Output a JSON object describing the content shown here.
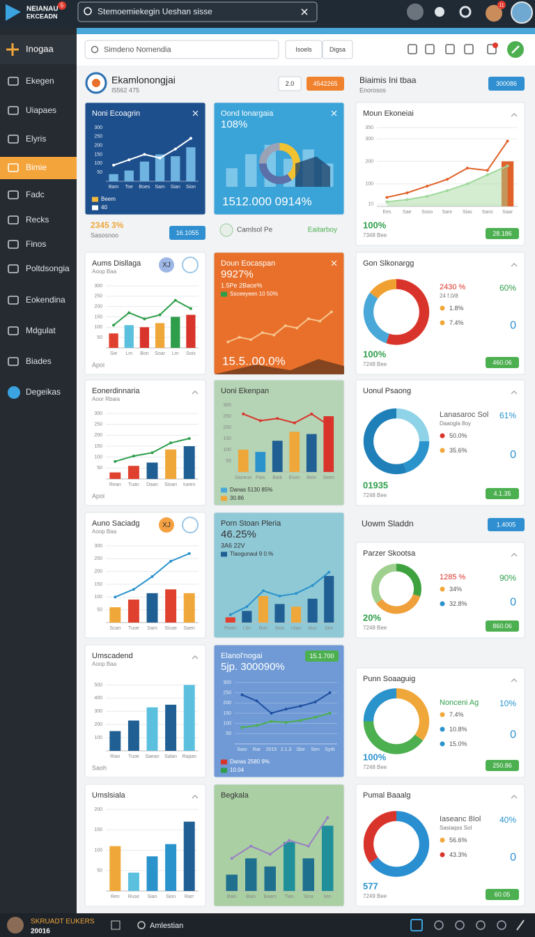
{
  "topbar": {
    "logo_title": "NEIANAU",
    "logo_sub": "EKCEADN",
    "logo_badge": "5",
    "search": "Stemoemiekegin Ueshan sisse",
    "avatar_badge": "11"
  },
  "sidebar": {
    "header": "Inogaa",
    "items": [
      "Ekegen",
      "Uiapaes",
      "Elyris",
      "Bimie",
      "Fadc",
      "Recks",
      "Finos",
      "Poltdsongia",
      "Eokendina",
      "Mdgulat",
      "Biades",
      "Degeikas"
    ],
    "active": 3
  },
  "toolbar": {
    "search": "Simdeno Nomendia",
    "buttons": [
      "Isoels",
      "Digsa"
    ]
  },
  "header": {
    "title": "Ekamlonongjai",
    "subtitle": "I5562 475",
    "buttons": [
      "2.0",
      "4542265"
    ]
  },
  "side_header": {
    "title": "Biaimis Ini tbaa",
    "subtitle": "Enorosos",
    "button": "300086"
  },
  "kpis": [
    {
      "value": "2345 3%",
      "label": "Sasosnoo",
      "button": "16.1055"
    },
    {
      "label": "Camlsol Pe",
      "value": "Eaitarboy"
    }
  ],
  "section": {
    "title": "Uowm Sladdn",
    "button": "1.4005"
  },
  "panels": [
    {
      "kind": "combo",
      "background": "#1d4f8c",
      "title": "Noni Ecoagrin",
      "legend": [
        {
          "text": "Beem",
          "color": "#f5b93a"
        },
        {
          "text": "40",
          "color": "#ffffff"
        }
      ],
      "legend_position": "bottom",
      "chart": {
        "categories": [
          "Bam",
          "Toe",
          "Boes",
          "Sam",
          "Sian",
          "Sion"
        ],
        "ylim": [
          0,
          300
        ],
        "yticks": [
          50,
          100,
          150,
          200,
          250,
          300
        ],
        "grid": false,
        "bars": [
          40,
          60,
          110,
          150,
          140,
          190
        ],
        "bar_colors": [
          "#6fb3e0",
          "#6fb3e0",
          "#6fb3e0",
          "#6fb3e0",
          "#6fb3e0",
          "#6fb3e0"
        ],
        "lines": [
          {
            "color": "#ffffff",
            "values": [
              90,
              120,
              150,
              130,
              180,
              240
            ]
          }
        ]
      }
    },
    {
      "kind": "combo",
      "background": "#3aa3d8",
      "title": "Oond lonargaia",
      "headline": "108%",
      "big": "1512.000 0914%",
      "chart": {
        "ylim": [
          0,
          100
        ],
        "bars": [
          40,
          70,
          90,
          60,
          80,
          50
        ],
        "bar_colors": [
          "#7cc6ea",
          "#7cc6ea",
          "#7cc6ea",
          "#7cc6ea",
          "#7cc6ea",
          "#7cc6ea"
        ],
        "segments": [
          40,
          35,
          25
        ],
        "colors": [
          "#f2c230",
          "#5b6fa8",
          "#9aa3b5"
        ]
      }
    },
    {
      "kind": "combo",
      "background": "#ffffff",
      "title": "Moun Ekoneiai",
      "kpi": "100%",
      "kpi_color": "#2e9e4a",
      "kpi_sub": "7348 Bee",
      "button": "28.186",
      "chart": {
        "categories": [
          "Ees",
          "Sae",
          "Soso",
          "Sanr",
          "Sias",
          "Sans",
          "Saar"
        ],
        "ylim": [
          0,
          350
        ],
        "yticks": [
          10,
          100,
          200,
          300,
          350
        ],
        "grid": true,
        "bars": [
          null,
          null,
          null,
          null,
          null,
          null,
          200
        ],
        "bar_colors": [
          "#e0622a",
          "#e0622a",
          "#e0622a",
          "#e0622a",
          "#e0622a",
          "#e0622a",
          "#e0622a"
        ],
        "lines": [
          {
            "color": "#9fd89a",
            "area": true,
            "values": [
              20,
              30,
              45,
              70,
              100,
              140,
              180
            ]
          },
          {
            "color": "#e0622a",
            "values": [
              40,
              60,
              90,
              120,
              170,
              160,
              290
            ]
          }
        ]
      }
    },
    {
      "kind": "combo",
      "background": "#ffffff",
      "title": "Aums Disllaga",
      "subtitle": "Aoop Baa",
      "badge": "XJ",
      "badge_color": "#9fb7e6",
      "footer": "Apoi",
      "chart": {
        "categories": [
          "Sie",
          "Lm",
          "Bon",
          "Soar",
          "Lm",
          "Sois"
        ],
        "ylim": [
          0,
          300
        ],
        "yticks": [
          50,
          100,
          150,
          200,
          250,
          300
        ],
        "grid": true,
        "bars": [
          70,
          110,
          100,
          120,
          150,
          160
        ],
        "bar_colors": [
          "#e0412f",
          "#5bc0de",
          "#d9342b",
          "#f0a73a",
          "#2e9e4a",
          "#d9342b"
        ],
        "lines": [
          {
            "color": "#2e9e4a",
            "values": [
              110,
              170,
              140,
              160,
              230,
              190
            ]
          }
        ]
      }
    },
    {
      "kind": "combo",
      "background": "#e8702a",
      "title": "Doun Eocaspan",
      "headline": "9927%",
      "headline_sub": "1.5Pe 2Bace%",
      "legend": [
        {
          "text": "Ssceeyeen 10 50%",
          "color": "#2e9e4a"
        }
      ],
      "legend_position": "top",
      "big": "15.5..00.0%",
      "chart": {
        "ylim": [
          0,
          160
        ],
        "lines": [
          {
            "color": "#f6c58f",
            "values": [
              20,
              40,
              30,
              60,
              50,
              90,
              80,
              120,
              110,
              150
            ]
          }
        ]
      }
    },
    {
      "kind": "donut",
      "background": "#ffffff",
      "title": "Gon Slkonargg",
      "legend_title": "2430 %",
      "legend_title_color": "#d9342b",
      "legend_sub": "24 f.0/8",
      "labels": [
        {
          "text": "1.8%",
          "color": "#f0a73a"
        },
        {
          "text": "7.4%",
          "color": "#f0a73a"
        }
      ],
      "percent": "60%",
      "percent_color": "#2e9e4a",
      "zero": "0",
      "kpi": "100%",
      "kpi_color": "#2e9e4a",
      "kpi_sub": "7248 Bee",
      "button": "460.06",
      "chart": {
        "segments": [
          55,
          30,
          15
        ],
        "colors": [
          "#d9342b",
          "#4aa8d8",
          "#f0a030"
        ]
      }
    },
    {
      "kind": "combo",
      "background": "#ffffff",
      "title": "Eonerdinnaria",
      "subtitle": "Aoor Rbaia",
      "footer": "Apoi",
      "chart": {
        "categories": [
          "Rean",
          "Tuan",
          "Daan",
          "Sioan",
          "Iueen"
        ],
        "ylim": [
          0,
          300
        ],
        "yticks": [
          50,
          100,
          150,
          200,
          250,
          300
        ],
        "grid": true,
        "bars": [
          30,
          60,
          75,
          135,
          150
        ],
        "bar_colors": [
          "#e0412f",
          "#e0412f",
          "#1f5f93",
          "#f0a73a",
          "#1f5f93"
        ],
        "lines": [
          {
            "color": "#2e9e4a",
            "values": [
              80,
              105,
              120,
              165,
              185
            ]
          }
        ]
      }
    },
    {
      "kind": "combo",
      "background": "#b5d3b5",
      "title": "Uoni Ekenpan",
      "legend": [
        {
          "text": "Danas 5130 85%",
          "color": "#4aa8d8"
        },
        {
          "text": "30.86",
          "color": "#f0a73a"
        }
      ],
      "legend_position": "bottom",
      "chart": {
        "categories": [
          "Saneun",
          "Pais",
          "Batk",
          "Eiom",
          "Bein",
          "Seen"
        ],
        "ylim": [
          0,
          300
        ],
        "yticks": [
          50,
          100,
          150,
          200,
          250,
          300
        ],
        "grid": false,
        "bars": [
          100,
          90,
          140,
          180,
          170,
          250
        ],
        "bar_colors": [
          "#f0a73a",
          "#2a93cc",
          "#1f5f93",
          "#f0a73a",
          "#1f5f93",
          "#d9342b"
        ],
        "lines": [
          {
            "color": "#d9342b",
            "values": [
              260,
              230,
              240,
              220,
              260,
              210
            ]
          }
        ]
      }
    },
    {
      "kind": "donut",
      "background": "#ffffff",
      "title": "Uonul Psaong",
      "legend_title": "Lanasaroc Sol",
      "legend_title_color": "#555555",
      "legend_sub": "Daaogla 8oy",
      "labels": [
        {
          "text": "50.0%",
          "color": "#d9342b"
        },
        {
          "text": "35.6%",
          "color": "#f0a73a"
        }
      ],
      "percent": "61%",
      "percent_color": "#2a93cc",
      "zero": "0",
      "kpi": "01935",
      "kpi_color": "#2e9e4a",
      "kpi_sub": "7248 Bee",
      "button": "4.1.35",
      "chart": {
        "segments": [
          25,
          20,
          55
        ],
        "colors": [
          "#8fd3e8",
          "#2a93cc",
          "#1f7fb8"
        ]
      }
    },
    {
      "kind": "combo",
      "background": "#ffffff",
      "title": "Auno Saciadg",
      "subtitle": "Aoop Baa",
      "badge": "XJ",
      "badge_color": "#f5a142",
      "chart": {
        "categories": [
          "Scan",
          "Tuoe",
          "Sam",
          "Sicae",
          "Saen"
        ],
        "ylim": [
          0,
          300
        ],
        "yticks": [
          50,
          100,
          150,
          200,
          250,
          300
        ],
        "grid": true,
        "bars": [
          60,
          90,
          115,
          130,
          115
        ],
        "bar_colors": [
          "#f0a73a",
          "#e0412f",
          "#1f5f93",
          "#e0412f",
          "#f0a73a"
        ],
        "lines": [
          {
            "color": "#2a93cc",
            "values": [
              100,
              130,
              180,
              240,
              270
            ]
          }
        ]
      }
    },
    {
      "kind": "combo",
      "background": "#8fc9d6",
      "title": "Porn Stoan Pleria",
      "headline": "46.25%",
      "headline_sub": "3A6 22V",
      "legend": [
        {
          "text": "Tlaogunaul 9 0.%",
          "color": "#1f5f93"
        }
      ],
      "legend_position": "top",
      "chart": {
        "categories": [
          "Peain",
          "Ltin",
          "Bon",
          "Sioo",
          "Uian",
          "Iiiun",
          "Sen"
        ],
        "ylim": [
          0,
          100
        ],
        "grid": false,
        "bars": [
          10,
          22,
          50,
          35,
          30,
          45,
          88
        ],
        "bar_colors": [
          "#e0412f",
          "#1f5f93",
          "#f0a73a",
          "#1f5f93",
          "#f0a73a",
          "#1f5f93",
          "#1f5f93"
        ],
        "lines": [
          {
            "color": "#2a93cc",
            "values": [
              15,
              30,
              60,
              50,
              55,
              70,
              95
            ]
          }
        ]
      }
    },
    {
      "kind": "donut",
      "background": "#ffffff",
      "title": "Parzer Skootsa",
      "legend_title": "1285 %",
      "legend_title_color": "#d9342b",
      "labels": [
        {
          "text": "34%",
          "color": "#f0a73a"
        },
        {
          "text": "32.8%",
          "color": "#2a93cc"
        }
      ],
      "percent": "90%",
      "percent_color": "#2e9e4a",
      "zero": "0",
      "kpi": "20%",
      "kpi_color": "#2e9e4a",
      "kpi_sub": "7248 Bee",
      "button": "860.06",
      "chart": {
        "segments": [
          30,
          35,
          35
        ],
        "colors": [
          "#3ea33e",
          "#f0a03a",
          "#9fd08f"
        ]
      }
    },
    {
      "kind": "combo",
      "background": "#ffffff",
      "title": "Umscadend",
      "subtitle": "Aoop Baa",
      "footer": "Saoh",
      "chart": {
        "categories": [
          "Rian",
          "Tuoe",
          "Saean",
          "Salan",
          "Rapan"
        ],
        "ylim": [
          0,
          550
        ],
        "yticks": [
          100,
          200,
          300,
          400,
          500
        ],
        "grid": true,
        "bars": [
          150,
          230,
          330,
          350,
          500
        ],
        "bar_colors": [
          "#1f5f93",
          "#1f5f93",
          "#5bc0de",
          "#1f5f93",
          "#5bc0de"
        ]
      }
    },
    {
      "kind": "combo",
      "background": "#6f9ad6",
      "title": "Elanol'nogai",
      "top_button": "15.1.700",
      "headline": "5jp. 300090%",
      "legend": [
        {
          "text": "Danas 2580 9%",
          "color": "#d9342b"
        },
        {
          "text": "10.04",
          "color": "#2e9e4a"
        }
      ],
      "legend_position": "bottom",
      "chart": {
        "categories": [
          "Sasr",
          "Rar",
          "2015",
          "2.1.3",
          "Sbe",
          "Sen",
          "Syrb"
        ],
        "ylim": [
          0,
          300
        ],
        "yticks": [
          50,
          100,
          150,
          200,
          250,
          300
        ],
        "grid": true,
        "lines": [
          {
            "color": "#1f4fa0",
            "values": [
              240,
              210,
              150,
              170,
              185,
              205,
              250
            ]
          },
          {
            "color": "#4caf50",
            "values": [
              80,
              90,
              110,
              105,
              115,
              130,
              150
            ]
          }
        ]
      }
    },
    {
      "kind": "donut",
      "background": "#ffffff",
      "title": "Punn Soaaguig",
      "legend_title": "Nonceni Ag",
      "legend_title_color": "#2e9e4a",
      "labels": [
        {
          "text": "7.4%",
          "color": "#f0a73a"
        },
        {
          "text": "10.8%",
          "color": "#2a93cc"
        },
        {
          "text": "15.0%",
          "color": "#2a93cc"
        }
      ],
      "percent": "10%",
      "percent_color": "#2a93cc",
      "zero": "0",
      "kpi": "100%",
      "kpi_color": "#2a93cc",
      "kpi_sub": "7248 Bee",
      "button": "250.86",
      "chart": {
        "segments": [
          35,
          40,
          25
        ],
        "colors": [
          "#f0a73a",
          "#4caf50",
          "#2a93cc"
        ]
      }
    },
    {
      "kind": "combo",
      "background": "#ffffff",
      "title": "Umslsiala",
      "chart": {
        "categories": [
          "Ren",
          "Ruse",
          "Sian",
          "Sion",
          "Rarr"
        ],
        "ylim": [
          0,
          200
        ],
        "yticks": [
          50,
          100,
          150,
          200
        ],
        "grid": true,
        "bars": [
          110,
          45,
          85,
          115,
          170
        ],
        "bar_colors": [
          "#f0a73a",
          "#5bc0de",
          "#2a93cc",
          "#2a93cc",
          "#1f5f93"
        ]
      }
    },
    {
      "kind": "combo",
      "background": "#a9cfa3",
      "title": "Begkala",
      "chart": {
        "categories": [
          "Bain",
          "Bain",
          "Baam",
          "Tian",
          "Sioa",
          "Iien"
        ],
        "ylim": [
          0,
          100
        ],
        "bars": [
          20,
          40,
          30,
          60,
          40,
          80
        ],
        "bar_colors": [
          "#1f6f8f",
          "#1f6f8f",
          "#1f6f8f",
          "#1f8f9a",
          "#1f6f8f",
          "#1f8f9a"
        ],
        "lines": [
          {
            "color": "#9a7fc4",
            "values": [
              40,
              55,
              45,
              62,
              55,
              90
            ]
          }
        ]
      }
    },
    {
      "kind": "donut",
      "background": "#ffffff",
      "title": "Pumal Baaalg",
      "legend_title": "Iaseanc 8Iol",
      "legend_title_color": "#555555",
      "legend_sub": "Sasiaqss Sol",
      "labels": [
        {
          "text": "56.6%",
          "color": "#f0a73a"
        },
        {
          "text": "43.3%",
          "color": "#d9342b"
        }
      ],
      "percent": "40%",
      "percent_color": "#2a93cc",
      "zero": "0",
      "kpi": "577",
      "kpi_color": "#2a93cc",
      "kpi_sub": "7249 Bee",
      "button": "60.05",
      "chart": {
        "segments": [
          65,
          35
        ],
        "colors": [
          "#2a8fd0",
          "#d9342b"
        ]
      }
    }
  ],
  "footer": {
    "user": "SKRUADT EUKERS",
    "year": "20016",
    "search": "Amlestian"
  }
}
